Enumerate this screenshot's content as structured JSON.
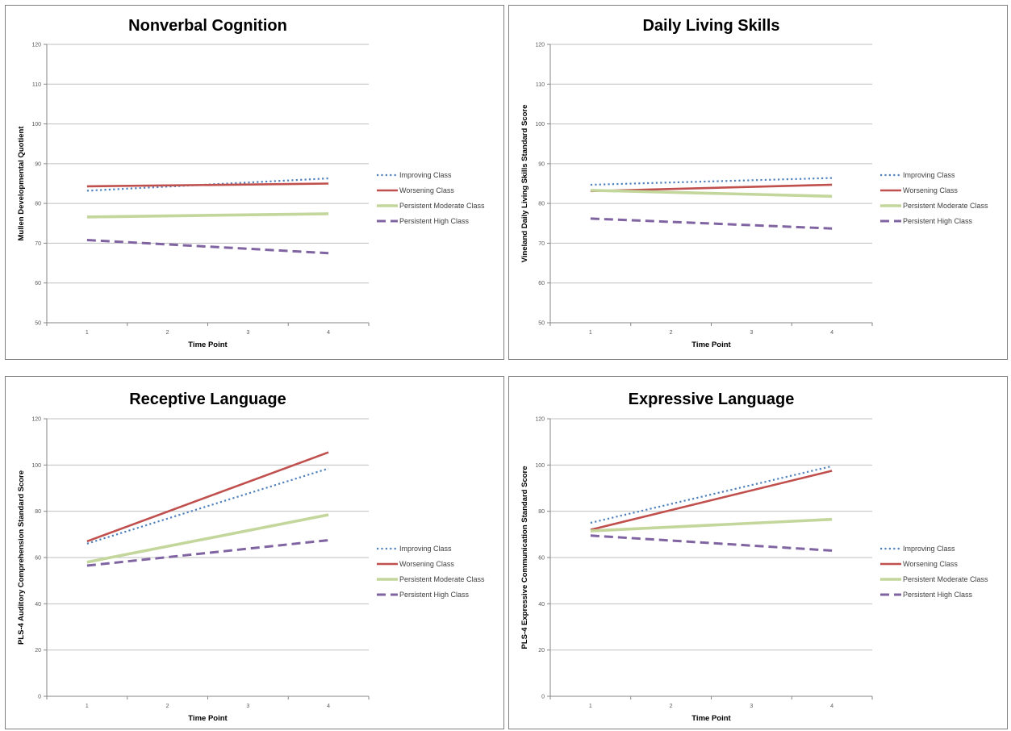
{
  "colors": {
    "improving": "#4f81bd",
    "worsening": "#c0504d",
    "moderate": "#c3d69b",
    "high": "#8064a2",
    "grid": "#bfbfbf",
    "axis": "#868686"
  },
  "chart_data": [
    {
      "type": "line",
      "title": "Nonverbal Cognition",
      "xlabel": "Time Point",
      "ylabel": "Mullen Developmental Quotient",
      "x": [
        1,
        4
      ],
      "xticks": [
        1,
        2,
        3,
        4
      ],
      "yticks": [
        50,
        60,
        70,
        80,
        90,
        100,
        110,
        120
      ],
      "ylim": [
        50,
        120
      ],
      "grid": true,
      "legend_position": "right",
      "series": [
        {
          "name": "Improving Class",
          "key": "improving",
          "values": [
            83.2,
            86.3
          ]
        },
        {
          "name": "Worsening Class",
          "key": "worsening",
          "values": [
            84.3,
            85.0
          ]
        },
        {
          "name": "Persistent Moderate Class",
          "key": "moderate",
          "values": [
            76.6,
            77.4
          ]
        },
        {
          "name": "Persistent High Class",
          "key": "high",
          "values": [
            70.8,
            67.5
          ]
        }
      ]
    },
    {
      "type": "line",
      "title": "Daily Living Skills",
      "xlabel": "Time Point",
      "ylabel": "Vineland Daily Living Skills Standard Score",
      "x": [
        1,
        4
      ],
      "xticks": [
        1,
        2,
        3,
        4
      ],
      "yticks": [
        50,
        60,
        70,
        80,
        90,
        100,
        110,
        120
      ],
      "ylim": [
        50,
        120
      ],
      "grid": true,
      "legend_position": "right",
      "series": [
        {
          "name": "Improving Class",
          "key": "improving",
          "values": [
            84.7,
            86.4
          ]
        },
        {
          "name": "Worsening Class",
          "key": "worsening",
          "values": [
            83.1,
            84.7
          ]
        },
        {
          "name": "Persistent Moderate Class",
          "key": "moderate",
          "values": [
            83.3,
            81.8
          ]
        },
        {
          "name": "Persistent High Class",
          "key": "high",
          "values": [
            76.2,
            73.7
          ]
        }
      ]
    },
    {
      "type": "line",
      "title": "Receptive Language",
      "xlabel": "Time Point",
      "ylabel": "PLS-4 Auditory Comprehension Standard Score",
      "x": [
        1,
        4
      ],
      "xticks": [
        1,
        2,
        3,
        4
      ],
      "yticks": [
        0,
        20,
        40,
        60,
        80,
        100,
        120
      ],
      "ylim": [
        0,
        120
      ],
      "grid": true,
      "legend_position": "right",
      "series": [
        {
          "name": "Improving Class",
          "key": "improving",
          "values": [
            66.0,
            98.5
          ]
        },
        {
          "name": "Worsening Class",
          "key": "worsening",
          "values": [
            67.0,
            105.5
          ]
        },
        {
          "name": "Persistent Moderate Class",
          "key": "moderate",
          "values": [
            58.0,
            78.5
          ]
        },
        {
          "name": "Persistent High Class",
          "key": "high",
          "values": [
            56.5,
            67.5
          ]
        }
      ]
    },
    {
      "type": "line",
      "title": "Expressive Language",
      "xlabel": "Time Point",
      "ylabel": "PLS-4 Expressive Communication Standard Score",
      "x": [
        1,
        4
      ],
      "xticks": [
        1,
        2,
        3,
        4
      ],
      "yticks": [
        0,
        20,
        40,
        60,
        80,
        100,
        120
      ],
      "ylim": [
        0,
        120
      ],
      "grid": true,
      "legend_position": "right",
      "series": [
        {
          "name": "Improving Class",
          "key": "improving",
          "values": [
            75.0,
            99.5
          ]
        },
        {
          "name": "Worsening Class",
          "key": "worsening",
          "values": [
            72.0,
            97.5
          ]
        },
        {
          "name": "Persistent Moderate Class",
          "key": "moderate",
          "values": [
            71.5,
            76.5
          ]
        },
        {
          "name": "Persistent High Class",
          "key": "high",
          "values": [
            69.5,
            63.0
          ]
        }
      ]
    }
  ]
}
